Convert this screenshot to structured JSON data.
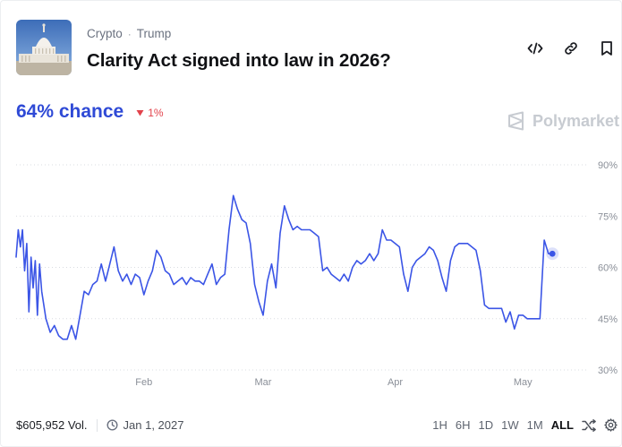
{
  "market": {
    "category": "Crypto",
    "subcategory": "Trump",
    "title": "Clarity Act signed into law in 2026?",
    "chance": "64% chance",
    "delta": "1%",
    "brand": "Polymarket"
  },
  "icons": {
    "embed": "code-embed-icon",
    "link": "link-icon",
    "bookmark": "bookmark-icon",
    "thumbnail": "capitol-building-thumbnail",
    "delta": "down-triangle-icon",
    "brand": "polymarket-logo-icon",
    "clock": "clock-icon",
    "shuffle": "shuffle-icon",
    "settings": "gear-icon"
  },
  "footer": {
    "volume": "$605,952 Vol.",
    "end_date": "Jan 1, 2027",
    "ranges": [
      "1H",
      "6H",
      "1D",
      "1W",
      "1M",
      "ALL"
    ],
    "active_range": "ALL"
  },
  "colors": {
    "accent": "#2f4ad6",
    "line": "#3b55e6",
    "negative": "#e2424b",
    "grid": "#d9dce1"
  },
  "chart_data": {
    "type": "line",
    "title": "",
    "xlabel": "",
    "ylabel": "",
    "ylim": [
      30,
      90
    ],
    "y_ticks": [
      30,
      45,
      60,
      75,
      90
    ],
    "y_tick_labels": [
      "30%",
      "45%",
      "60%",
      "75%",
      "90%"
    ],
    "x_tick_labels": [
      "Feb",
      "Mar",
      "Apr",
      "May"
    ],
    "x_tick_days": [
      31,
      59,
      90,
      120
    ],
    "x_unit": "days since Jan 1, 2026",
    "grid": true,
    "series": [
      {
        "name": "",
        "values_pct": [
          [
            1,
            63
          ],
          [
            1.5,
            71
          ],
          [
            2,
            66
          ],
          [
            2.5,
            71
          ],
          [
            3,
            59
          ],
          [
            3.5,
            67
          ],
          [
            4,
            47
          ],
          [
            4.5,
            63
          ],
          [
            5,
            54
          ],
          [
            5.5,
            62
          ],
          [
            6,
            46
          ],
          [
            6.5,
            61
          ],
          [
            7,
            53
          ],
          [
            8,
            45
          ],
          [
            9,
            41
          ],
          [
            10,
            43
          ],
          [
            11,
            40
          ],
          [
            12,
            39
          ],
          [
            13,
            39
          ],
          [
            14,
            43
          ],
          [
            15,
            39
          ],
          [
            16,
            46
          ],
          [
            17,
            53
          ],
          [
            18,
            52
          ],
          [
            19,
            55
          ],
          [
            20,
            56
          ],
          [
            21,
            61
          ],
          [
            22,
            56
          ],
          [
            23,
            61
          ],
          [
            24,
            66
          ],
          [
            25,
            59
          ],
          [
            26,
            56
          ],
          [
            27,
            58
          ],
          [
            28,
            55
          ],
          [
            29,
            58
          ],
          [
            30,
            57
          ],
          [
            31,
            52
          ],
          [
            32,
            56
          ],
          [
            33,
            59
          ],
          [
            34,
            65
          ],
          [
            35,
            63
          ],
          [
            36,
            59
          ],
          [
            37,
            58
          ],
          [
            38,
            55
          ],
          [
            39,
            56
          ],
          [
            40,
            57
          ],
          [
            41,
            55
          ],
          [
            42,
            57
          ],
          [
            43,
            56
          ],
          [
            44,
            56
          ],
          [
            45,
            55
          ],
          [
            46,
            58
          ],
          [
            47,
            61
          ],
          [
            48,
            55
          ],
          [
            49,
            57
          ],
          [
            50,
            58
          ],
          [
            51,
            71
          ],
          [
            52,
            81
          ],
          [
            53,
            77
          ],
          [
            54,
            74
          ],
          [
            55,
            73
          ],
          [
            56,
            67
          ],
          [
            57,
            55
          ],
          [
            58,
            50
          ],
          [
            59,
            46
          ],
          [
            60,
            56
          ],
          [
            61,
            61
          ],
          [
            62,
            54
          ],
          [
            63,
            70
          ],
          [
            64,
            78
          ],
          [
            65,
            74
          ],
          [
            66,
            71
          ],
          [
            67,
            72
          ],
          [
            68,
            71
          ],
          [
            69,
            71
          ],
          [
            70,
            71
          ],
          [
            71,
            70
          ],
          [
            72,
            69
          ],
          [
            73,
            59
          ],
          [
            74,
            60
          ],
          [
            75,
            58
          ],
          [
            76,
            57
          ],
          [
            77,
            56
          ],
          [
            78,
            58
          ],
          [
            79,
            56
          ],
          [
            80,
            60
          ],
          [
            81,
            62
          ],
          [
            82,
            61
          ],
          [
            83,
            62
          ],
          [
            84,
            64
          ],
          [
            85,
            62
          ],
          [
            86,
            64
          ],
          [
            87,
            71
          ],
          [
            88,
            68
          ],
          [
            89,
            68
          ],
          [
            90,
            67
          ],
          [
            91,
            66
          ],
          [
            92,
            58
          ],
          [
            93,
            53
          ],
          [
            94,
            60
          ],
          [
            95,
            62
          ],
          [
            96,
            63
          ],
          [
            97,
            64
          ],
          [
            98,
            66
          ],
          [
            99,
            65
          ],
          [
            100,
            62
          ],
          [
            101,
            57
          ],
          [
            102,
            53
          ],
          [
            103,
            62
          ],
          [
            104,
            66
          ],
          [
            105,
            67
          ],
          [
            106,
            67
          ],
          [
            107,
            67
          ],
          [
            108,
            66
          ],
          [
            109,
            65
          ],
          [
            110,
            59
          ],
          [
            111,
            49
          ],
          [
            112,
            48
          ],
          [
            113,
            48
          ],
          [
            114,
            48
          ],
          [
            115,
            48
          ],
          [
            116,
            44
          ],
          [
            117,
            47
          ],
          [
            118,
            42
          ],
          [
            119,
            46
          ],
          [
            120,
            46
          ],
          [
            121,
            45
          ],
          [
            122,
            45
          ],
          [
            123,
            45
          ],
          [
            124,
            45
          ],
          [
            125,
            68
          ],
          [
            126,
            64
          ],
          [
            126.5,
            64
          ]
        ]
      }
    ]
  }
}
